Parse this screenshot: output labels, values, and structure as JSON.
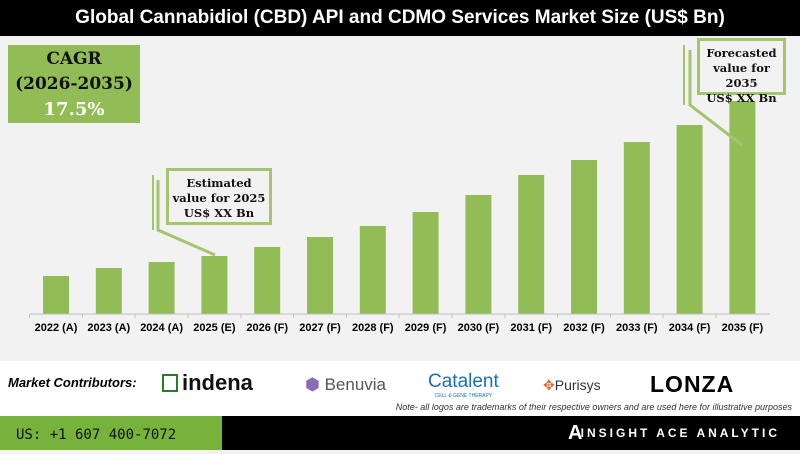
{
  "chart_data": {
    "type": "bar",
    "title": "Global Cannabidiol (CBD) API and CDMO Services  Market Size (US$ Bn)",
    "categories": [
      "2022 (A)",
      "2023 (A)",
      "2024 (A)",
      "2025 (E)",
      "2026 (F)",
      "2027 (F)",
      "2028 (F)",
      "2029 (F)",
      "2030 (F)",
      "2031 (F)",
      "2032 (F)",
      "2033 (F)",
      "2034 (F)",
      "2035 (F)"
    ],
    "values": [
      38,
      46,
      52,
      58,
      67,
      77,
      88,
      102,
      119,
      139,
      154,
      172,
      189,
      213
    ],
    "value_scale": "relative (no y-axis printed)",
    "bar_color": "#92bc55",
    "grid": false
  },
  "cagr": {
    "label": "CAGR",
    "period": "(2026-2035)",
    "value": "17.5%"
  },
  "callouts": {
    "estimated": {
      "l1": "Estimated",
      "l2": "value for 2025",
      "l3": "US$ XX Bn"
    },
    "forecasted": {
      "l1": "Forecasted",
      "l2": "value for 2035",
      "l3": "US$ XX Bn"
    }
  },
  "contributors": {
    "label": "Market Contributors:",
    "logos": [
      "indena",
      "Benuvia",
      "Catalent",
      "Purisys",
      "LONZA"
    ],
    "catalent_sub": "CELL & GENE THERAPY",
    "note": "Note- all logos are trademarks of their respective owners and are used here for illustrative purposes"
  },
  "footer": {
    "phone": "US: +1 607 400-7072",
    "brand": "INSIGHT ACE ANALYTIC",
    "brand_icon": "A"
  }
}
